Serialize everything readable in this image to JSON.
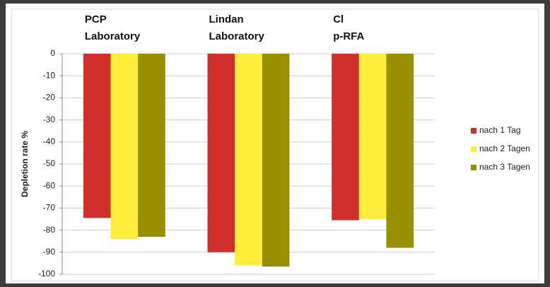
{
  "chart_data": {
    "type": "bar",
    "categories": [
      "PCP\nLaboratory",
      "Lindan\nLaboratory",
      "Cl\np-RFA"
    ],
    "series": [
      {
        "name": "nach 1 Tag",
        "color": "#d0302b",
        "values": [
          -74.5,
          -90,
          -75.5
        ]
      },
      {
        "name": "nach 2 Tagen",
        "color": "#ffec3c",
        "values": [
          -84,
          -96,
          -75
        ]
      },
      {
        "name": "nach 3 Tagen",
        "color": "#999000",
        "values": [
          -83,
          -96.5,
          -88
        ]
      }
    ],
    "ylabel": "Depletion rate %",
    "ylim": [
      -100,
      0
    ],
    "yticks": [
      0,
      -10,
      -20,
      -30,
      -40,
      -50,
      -60,
      -70,
      -80,
      -90,
      -100
    ],
    "grid": true,
    "legend": "right"
  }
}
